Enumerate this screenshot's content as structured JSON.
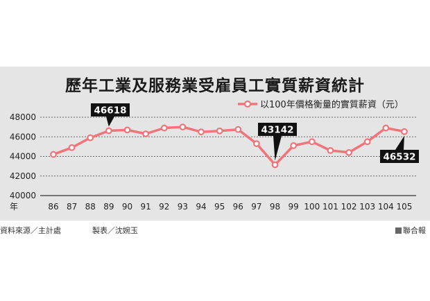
{
  "chart_data": {
    "type": "line",
    "title": "歷年工業及服務業受雇員工實質薪資統計",
    "xlabel": "年",
    "categories": [
      "86",
      "87",
      "88",
      "89",
      "90",
      "91",
      "92",
      "93",
      "94",
      "95",
      "96",
      "97",
      "98",
      "99",
      "100",
      "101",
      "102",
      "103",
      "104",
      "105"
    ],
    "series": [
      {
        "name": "以100年價格衡量的實質薪資（元）",
        "values": [
          44200,
          44900,
          45900,
          46618,
          46700,
          46300,
          46900,
          47000,
          46500,
          46600,
          46750,
          45300,
          43142,
          45100,
          45500,
          44600,
          44400,
          45500,
          46900,
          46532
        ],
        "color": "#f0747a"
      }
    ],
    "ylim": [
      40000,
      48000
    ],
    "yticks": [
      40000,
      42000,
      44000,
      46000,
      48000
    ],
    "grid": true,
    "legend_position": "top-right",
    "annotations": [
      {
        "label": "46618",
        "index": 3
      },
      {
        "label": "43142",
        "index": 12
      },
      {
        "label": "46532",
        "index": 19
      }
    ]
  },
  "footer": {
    "source": "資料來源／主計處",
    "maker": "製表／沈婉玉",
    "agency": "聯合報"
  }
}
